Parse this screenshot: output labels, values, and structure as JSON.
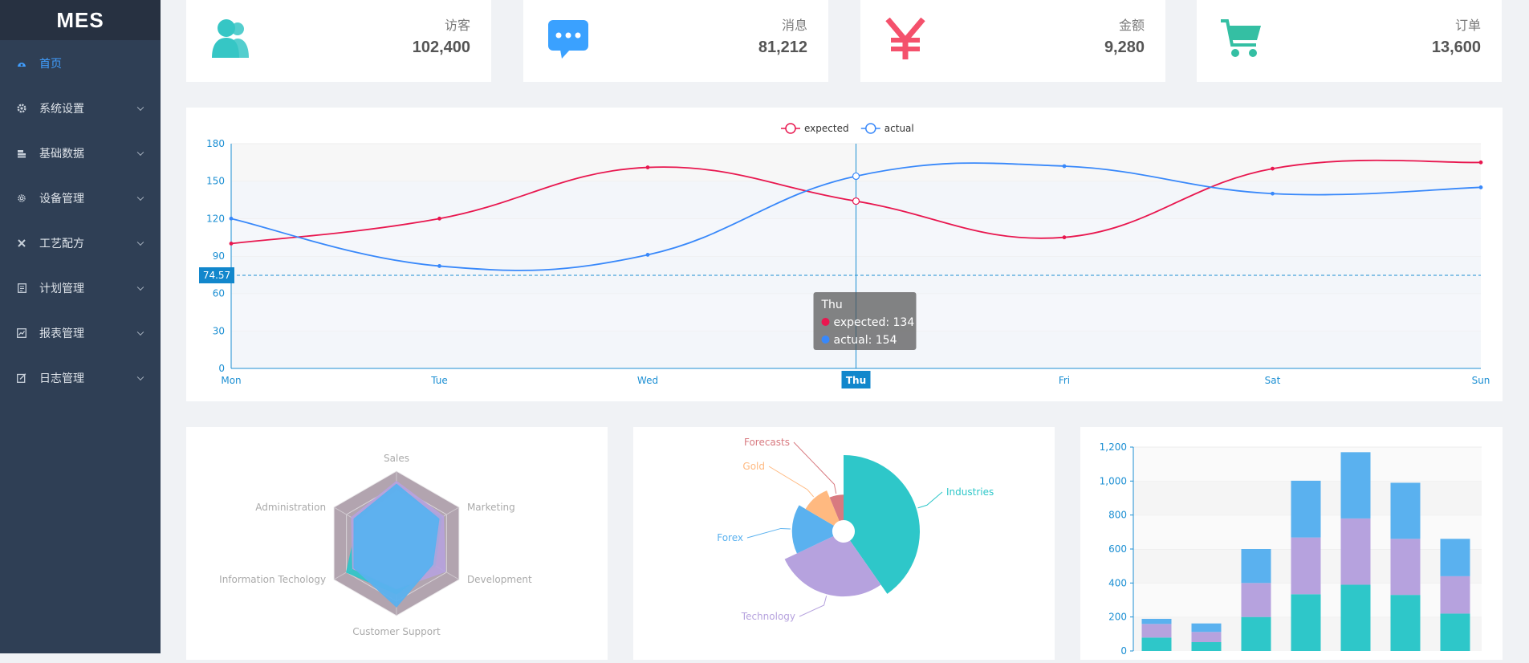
{
  "app": {
    "logo": "MES"
  },
  "sidebar": {
    "items": [
      {
        "label": "首页",
        "icon": "dashboard-icon",
        "active": true
      },
      {
        "label": "系统设置",
        "icon": "gear-icon"
      },
      {
        "label": "基础数据",
        "icon": "database-icon"
      },
      {
        "label": "设备管理",
        "icon": "equipment-icon"
      },
      {
        "label": "工艺配方",
        "icon": "tools-icon"
      },
      {
        "label": "计划管理",
        "icon": "plan-icon"
      },
      {
        "label": "报表管理",
        "icon": "report-icon"
      },
      {
        "label": "日志管理",
        "icon": "log-icon"
      }
    ]
  },
  "stats": [
    {
      "label": "访客",
      "value": "102,400",
      "icon": "users-icon",
      "color": "#36c6c5"
    },
    {
      "label": "消息",
      "value": "81,212",
      "icon": "message-icon",
      "color": "#3aa1ff"
    },
    {
      "label": "金额",
      "value": "9,280",
      "icon": "yen-icon",
      "color": "#f4516c"
    },
    {
      "label": "订单",
      "value": "13,600",
      "icon": "shopping-cart-icon",
      "color": "#34bfa3"
    }
  ],
  "chart_data": [
    {
      "type": "line",
      "categories": [
        "Mon",
        "Tue",
        "Wed",
        "Thu",
        "Fri",
        "Sat",
        "Sun"
      ],
      "series": [
        {
          "name": "expected",
          "values": [
            100,
            120,
            161,
            134,
            105,
            160,
            165
          ],
          "color": "#e8174f"
        },
        {
          "name": "actual",
          "values": [
            120,
            82,
            91,
            154,
            162,
            140,
            145
          ],
          "color": "#3888fa"
        }
      ],
      "ylim": [
        0,
        180
      ],
      "yticks": [
        0,
        30,
        60,
        90,
        120,
        150,
        180
      ],
      "legend": "top-center",
      "crosshair": {
        "x_label": "Thu",
        "y_label": "74.57",
        "y_value": 74.57
      },
      "tooltip": {
        "title": "Thu",
        "lines": [
          "expected: 134",
          "actual: 154"
        ]
      }
    },
    {
      "type": "radar",
      "indicators": [
        "Sales",
        "Marketing",
        "Development",
        "Customer Support",
        "Information Techology",
        "Administration"
      ],
      "series": [
        {
          "values": [
            0.73,
            0.72,
            0.62,
            0.7,
            0.8,
            0.62
          ],
          "color": "#2ec7c9"
        },
        {
          "values": [
            0.86,
            0.75,
            0.78,
            0.63,
            0.7,
            0.72
          ],
          "color": "#b6a2de"
        },
        {
          "values": [
            0.82,
            0.68,
            0.58,
            0.88,
            0.68,
            0.68
          ],
          "color": "#5ab1ef"
        }
      ]
    },
    {
      "type": "pie",
      "subtype": "rose",
      "slices": [
        {
          "name": "Industries",
          "value": 390,
          "color": "#2ec7c9"
        },
        {
          "name": "Technology",
          "value": 268,
          "color": "#b6a2de"
        },
        {
          "name": "Forex",
          "value": 150,
          "color": "#5ab1ef"
        },
        {
          "name": "Gold",
          "value": 100,
          "color": "#ffb980"
        },
        {
          "name": "Forecasts",
          "value": 60,
          "color": "#d87a80"
        }
      ]
    },
    {
      "type": "bar",
      "stacked": true,
      "categories": [
        "",
        "",
        "",
        "",
        "",
        "",
        ""
      ],
      "series": [
        {
          "values": [
            79,
            52,
            200,
            334,
            390,
            330,
            220
          ],
          "color": "#2ec7c9"
        },
        {
          "values": [
            80,
            60,
            200,
            334,
            390,
            330,
            220
          ],
          "color": "#b6a2de"
        },
        {
          "values": [
            30,
            50,
            200,
            334,
            390,
            330,
            220
          ],
          "color": "#5ab1ef"
        }
      ],
      "ylim": [
        0,
        1200
      ],
      "yticks": [
        "0",
        "200",
        "400",
        "600",
        "800",
        "1,000",
        "1,200"
      ]
    }
  ]
}
